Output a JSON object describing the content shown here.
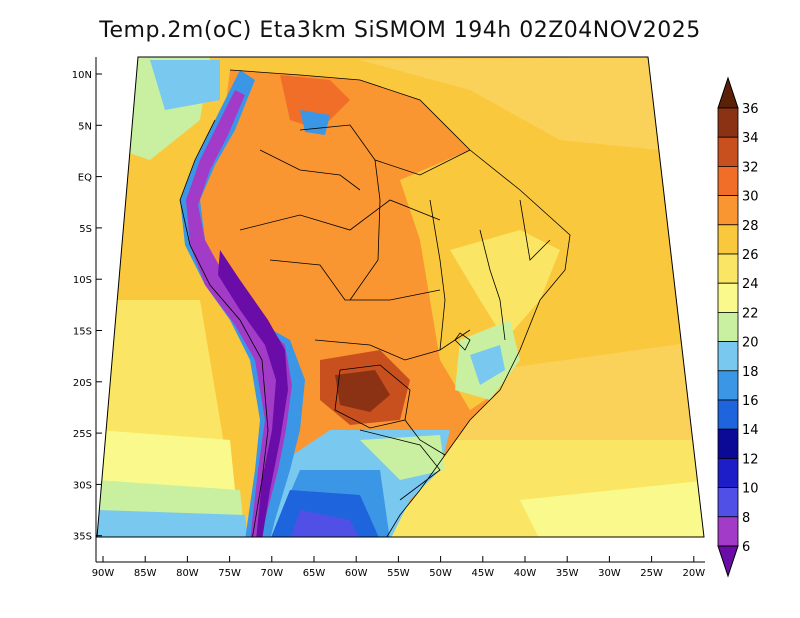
{
  "title": "Temp.2m(oC) Eta3km SiSMOM 194h 02Z04NOV2025",
  "axes": {
    "lon_labels": [
      "90W",
      "85W",
      "80W",
      "75W",
      "70W",
      "65W",
      "60W",
      "55W",
      "50W",
      "45W",
      "40W",
      "35W",
      "30W",
      "25W",
      "20W"
    ],
    "lat_labels": [
      "10N",
      "5N",
      "EQ",
      "5S",
      "10S",
      "15S",
      "20S",
      "25S",
      "30S",
      "35S"
    ]
  },
  "colorbar": {
    "labels": [
      "6",
      "8",
      "10",
      "12",
      "14",
      "16",
      "18",
      "20",
      "22",
      "24",
      "26",
      "28",
      "30",
      "32",
      "34",
      "36"
    ],
    "colors": [
      "#6a0da8",
      "#a23bc8",
      "#5050e6",
      "#1e1ec8",
      "#0a0a96",
      "#1e64dc",
      "#3c96e6",
      "#78c8f0",
      "#c8f0a0",
      "#fafa8c",
      "#fae664",
      "#fac83c",
      "#fa9632",
      "#f06e28",
      "#c8501e",
      "#8c3214",
      "#5a2008"
    ]
  },
  "chart_data": {
    "type": "heatmap",
    "variable": "Temp.2m(oC)",
    "model": "Eta3km SiSMOM",
    "forecast_hour": "194h",
    "valid_time": "02Z04NOV2025",
    "lon_range": [
      -91,
      -19
    ],
    "lat_range": [
      -38,
      12
    ],
    "value_range": [
      6,
      36
    ]
  }
}
